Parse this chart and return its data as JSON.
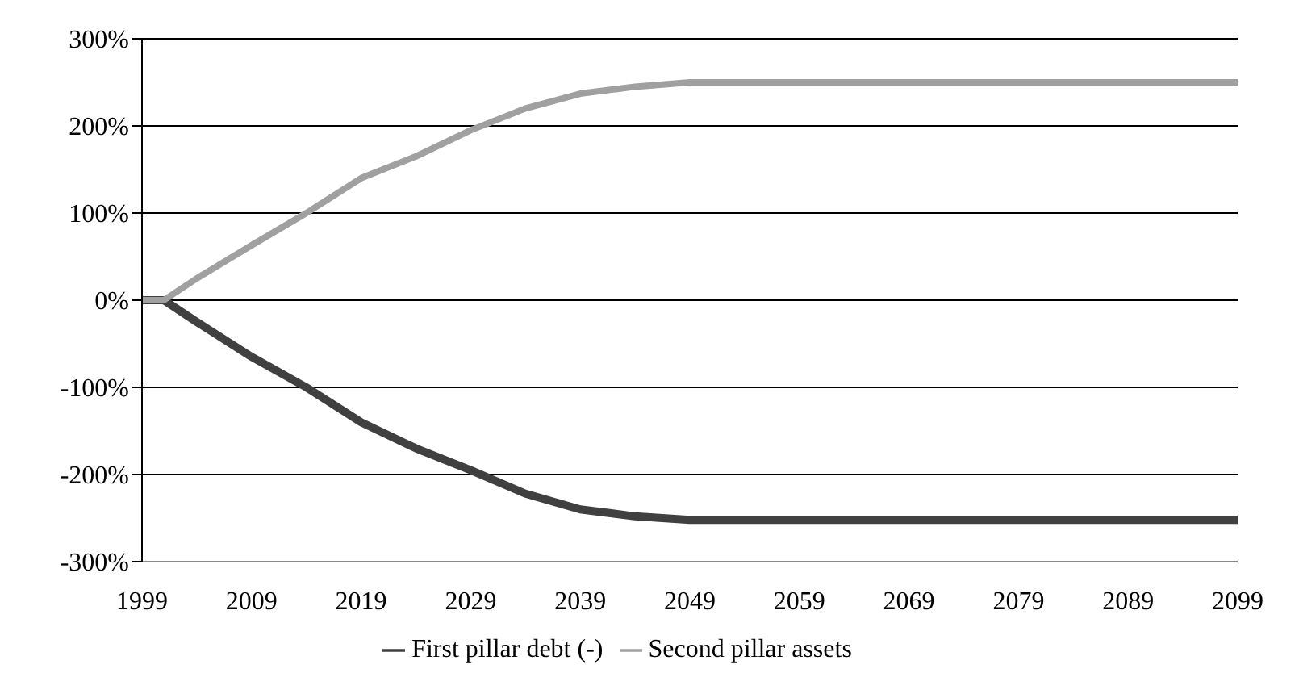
{
  "chart_data": {
    "type": "line",
    "x": [
      1999,
      2001,
      2004,
      2009,
      2014,
      2019,
      2024,
      2029,
      2034,
      2039,
      2044,
      2049,
      2059,
      2069,
      2079,
      2089,
      2099
    ],
    "series": [
      {
        "name": "First pillar debt (-)",
        "color": "#404040",
        "values": [
          0,
          0,
          -25,
          -65,
          -100,
          -140,
          -170,
          -195,
          -222,
          -240,
          -248,
          -252,
          -252,
          -252,
          -252,
          -252,
          -252
        ]
      },
      {
        "name": "Second pillar assets",
        "color": "#a0a0a0",
        "values": [
          0,
          0,
          25,
          63,
          100,
          140,
          165,
          195,
          220,
          237,
          245,
          250,
          250,
          250,
          250,
          250,
          250
        ]
      }
    ],
    "xlim": [
      1999,
      2099
    ],
    "xticks": [
      1999,
      2009,
      2019,
      2029,
      2039,
      2049,
      2059,
      2069,
      2079,
      2089,
      2099
    ],
    "ylim": [
      -300,
      300
    ],
    "yticks": [
      {
        "value": -300,
        "label": "-300%"
      },
      {
        "value": -200,
        "label": "-200%"
      },
      {
        "value": -100,
        "label": "-100%"
      },
      {
        "value": 0,
        "label": "0%"
      },
      {
        "value": 100,
        "label": "100%"
      },
      {
        "value": 200,
        "label": "200%"
      },
      {
        "value": 300,
        "label": "300%"
      }
    ],
    "grid": "y",
    "legend": "bottom",
    "marker": "none",
    "line_style": "solid"
  }
}
